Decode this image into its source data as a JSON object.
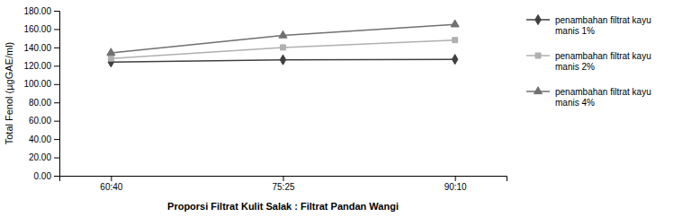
{
  "chart_data": {
    "type": "line",
    "xlabel": "Proporsi Filtrat Kulit Salak : Filtrat Pandan Wangi",
    "ylabel": "Total Fenol (µgGAE/ml)",
    "categories": [
      "60:40",
      "75:25",
      "90:10"
    ],
    "series": [
      {
        "name": "penambahan filtrat kayu\nmanis 1%",
        "color": "#404040",
        "marker": "diamond",
        "values": [
          124.0,
          126.5,
          127.0
        ]
      },
      {
        "name": "penambahan filtrat kayu\nmanis 2%",
        "color": "#b0b0b0",
        "marker": "square",
        "values": [
          128.0,
          140.0,
          148.0
        ]
      },
      {
        "name": "penambahan filtrat kayu\nmanis 4%",
        "color": "#707070",
        "marker": "triangle",
        "values": [
          134.0,
          153.0,
          165.0
        ]
      }
    ],
    "ylim": [
      0,
      180
    ],
    "yticks": [
      {
        "value": 0,
        "label": "0.00"
      },
      {
        "value": 20,
        "label": "20.00"
      },
      {
        "value": 40,
        "label": "40.00"
      },
      {
        "value": 60,
        "label": "60.00"
      },
      {
        "value": 80,
        "label": "80.00"
      },
      {
        "value": 100,
        "label": "100.00"
      },
      {
        "value": 120,
        "label": "120.00"
      },
      {
        "value": 140,
        "label": "140.00"
      },
      {
        "value": 160,
        "label": "160.00"
      },
      {
        "value": 180,
        "label": "180.00"
      }
    ],
    "grid": false,
    "legend": "right"
  }
}
